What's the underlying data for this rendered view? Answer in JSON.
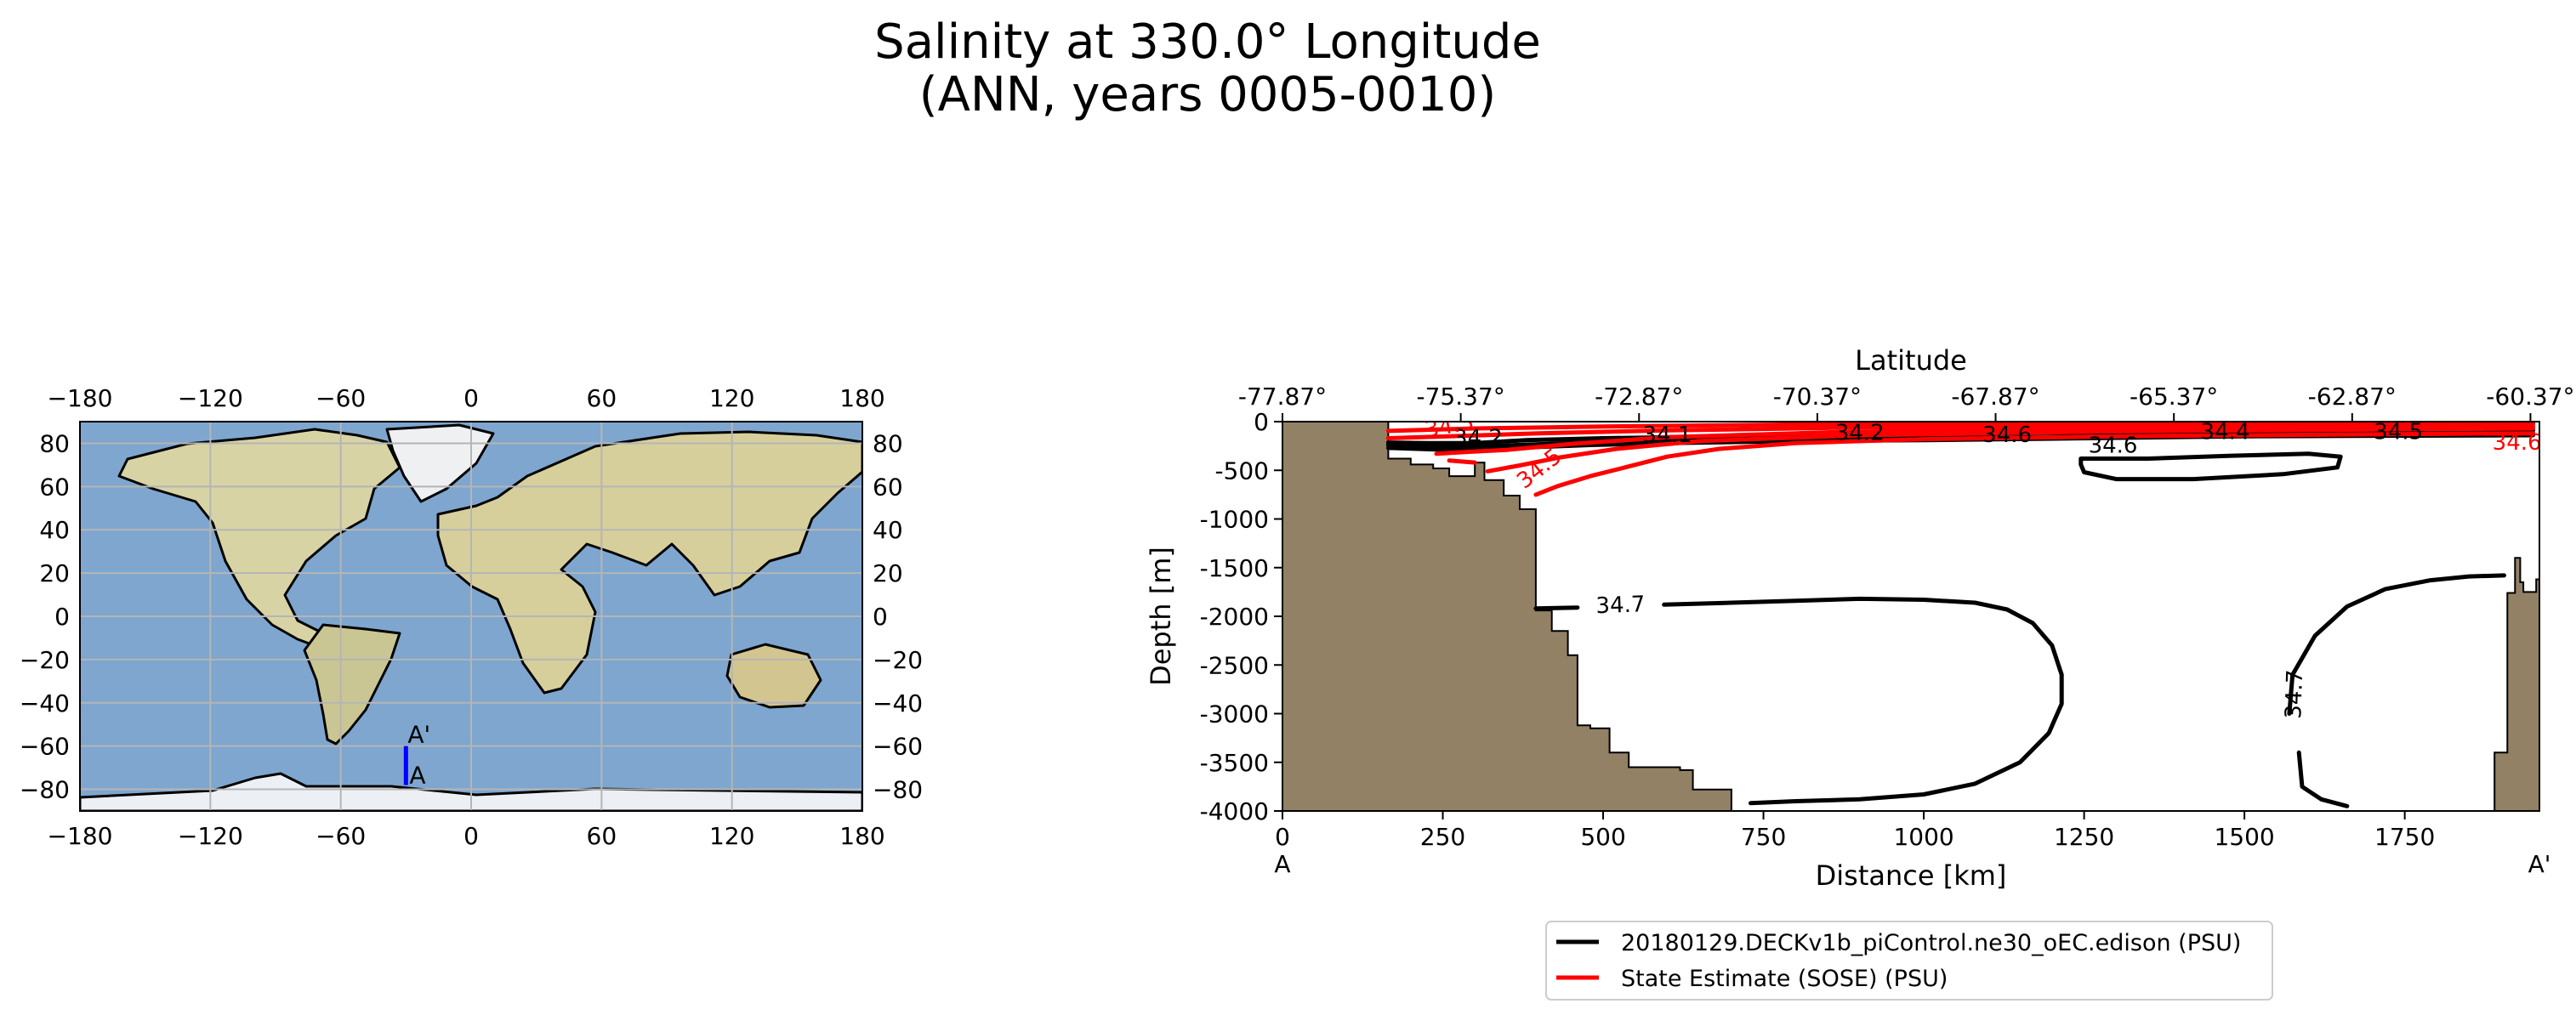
{
  "title": {
    "line1": "Salinity at 330.0° Longitude",
    "line2": "(ANN, years 0005-0010)"
  },
  "map": {
    "x_ticks": [
      "−180",
      "−120",
      "−60",
      "0",
      "60",
      "120",
      "180"
    ],
    "y_ticks": [
      "80",
      "60",
      "40",
      "20",
      "0",
      "−20",
      "−40",
      "−60",
      "−80"
    ],
    "transect": {
      "lon": -30,
      "lat_start": -78,
      "lat_end": -60,
      "start_label": "A",
      "end_label": "A'",
      "color": "#0000ff"
    },
    "ocean_color": "#7ea6cf",
    "land_color": "#d8d3a4"
  },
  "chart_data": {
    "type": "contour",
    "title": "",
    "top_axis_label": "Latitude",
    "lat_ticks": [
      "-77.87°",
      "-75.37°",
      "-72.87°",
      "-70.37°",
      "-67.87°",
      "-65.37°",
      "-62.87°",
      "-60.37°"
    ],
    "lat_tick_distances": [
      0,
      278,
      556,
      834,
      1112,
      1390,
      1668,
      1946
    ],
    "xlabel": "Distance [km]",
    "ylabel": "Depth [m]",
    "xlim": [
      0,
      1960
    ],
    "ylim": [
      -4000,
      0
    ],
    "x_ticks": [
      "0",
      "250",
      "500",
      "750",
      "1000",
      "1250",
      "1500",
      "1750"
    ],
    "x_tick_values": [
      0,
      250,
      500,
      750,
      1000,
      1250,
      1500,
      1750
    ],
    "y_ticks": [
      "0",
      "-500",
      "-1000",
      "-1500",
      "-2000",
      "-2500",
      "-3000",
      "-3500",
      "-4000"
    ],
    "y_tick_values": [
      0,
      -500,
      -1000,
      -1500,
      -2000,
      -2500,
      -3000,
      -3500,
      -4000
    ],
    "start_label": "A",
    "end_label": "A'",
    "bathymetry_color": "#928165",
    "bathymetry_left": [
      [
        0,
        0
      ],
      [
        165,
        0
      ],
      [
        165,
        -380
      ],
      [
        200,
        -380
      ],
      [
        200,
        -440
      ],
      [
        235,
        -440
      ],
      [
        235,
        -480
      ],
      [
        260,
        -480
      ],
      [
        260,
        -560
      ],
      [
        300,
        -560
      ],
      [
        300,
        -420
      ],
      [
        315,
        -420
      ],
      [
        315,
        -600
      ],
      [
        345,
        -600
      ],
      [
        345,
        -760
      ],
      [
        370,
        -760
      ],
      [
        370,
        -900
      ],
      [
        395,
        -900
      ],
      [
        395,
        -1940
      ],
      [
        420,
        -1940
      ],
      [
        420,
        -2150
      ],
      [
        445,
        -2150
      ],
      [
        445,
        -2400
      ],
      [
        460,
        -2400
      ],
      [
        460,
        -3120
      ],
      [
        480,
        -3120
      ],
      [
        480,
        -3150
      ],
      [
        510,
        -3150
      ],
      [
        510,
        -3400
      ],
      [
        540,
        -3400
      ],
      [
        540,
        -3550
      ],
      [
        620,
        -3550
      ],
      [
        620,
        -3580
      ],
      [
        640,
        -3580
      ],
      [
        640,
        -3780
      ],
      [
        700,
        -3780
      ],
      [
        700,
        -4000
      ],
      [
        0,
        -4000
      ]
    ],
    "bathymetry_right": [
      [
        1960,
        0
      ],
      [
        1960,
        -1620
      ],
      [
        1955,
        -1620
      ],
      [
        1955,
        -1750
      ],
      [
        1935,
        -1750
      ],
      [
        1935,
        -1650
      ],
      [
        1930,
        -1650
      ],
      [
        1930,
        -1400
      ],
      [
        1922,
        -1400
      ],
      [
        1922,
        -1760
      ],
      [
        1910,
        -1760
      ],
      [
        1910,
        -3400
      ],
      [
        1890,
        -3400
      ],
      [
        1890,
        -4000
      ],
      [
        1960,
        -4000
      ]
    ],
    "series": [
      {
        "name": "20180129.DECKv1b_piControl.ne30_oEC.edison (PSU)",
        "color": "#000000",
        "contours": [
          {
            "level": "34.7",
            "closed": false,
            "points": [
              [
                395,
                -1920
              ],
              [
                460,
                -1910
              ]
            ]
          },
          {
            "level": "34.7",
            "closed": false,
            "points": [
              [
                595,
                -1880
              ],
              [
                700,
                -1860
              ],
              [
                800,
                -1840
              ],
              [
                900,
                -1820
              ],
              [
                1000,
                -1830
              ],
              [
                1080,
                -1860
              ],
              [
                1130,
                -1930
              ],
              [
                1170,
                -2070
              ],
              [
                1200,
                -2300
              ],
              [
                1215,
                -2600
              ],
              [
                1215,
                -2900
              ],
              [
                1195,
                -3200
              ],
              [
                1150,
                -3500
              ],
              [
                1080,
                -3720
              ],
              [
                1000,
                -3830
              ],
              [
                900,
                -3880
              ],
              [
                800,
                -3900
              ],
              [
                730,
                -3920
              ]
            ]
          },
          {
            "level": "34.7",
            "closed": false,
            "points": [
              [
                1570,
                -3000
              ],
              [
                1575,
                -2600
              ],
              [
                1610,
                -2200
              ],
              [
                1660,
                -1900
              ],
              [
                1720,
                -1720
              ],
              [
                1790,
                -1630
              ],
              [
                1850,
                -1590
              ],
              [
                1905,
                -1580
              ]
            ]
          },
          {
            "level": "34.7",
            "closed": false,
            "points": [
              [
                1660,
                -3950
              ],
              [
                1620,
                -3880
              ],
              [
                1590,
                -3750
              ],
              [
                1585,
                -3400
              ]
            ]
          },
          {
            "level": "34.6",
            "closed": true,
            "points": [
              [
                1245,
                -380
              ],
              [
                1350,
                -380
              ],
              [
                1480,
                -350
              ],
              [
                1600,
                -330
              ],
              [
                1650,
                -360
              ],
              [
                1645,
                -470
              ],
              [
                1560,
                -540
              ],
              [
                1420,
                -590
              ],
              [
                1300,
                -590
              ],
              [
                1250,
                -520
              ],
              [
                1245,
                -440
              ],
              [
                1245,
                -380
              ]
            ]
          },
          {
            "level": "34.6",
            "closed": false,
            "points": [
              [
                165,
                -215
              ],
              [
                230,
                -220
              ],
              [
                300,
                -220
              ],
              [
                380,
                -190
              ],
              [
                500,
                -170
              ],
              [
                700,
                -150
              ],
              [
                900,
                -135
              ],
              [
                1100,
                -120
              ],
              [
                1300,
                -110
              ],
              [
                1500,
                -100
              ],
              [
                1700,
                -95
              ],
              [
                1950,
                -90
              ]
            ]
          },
          {
            "level": "34.2",
            "closed": false,
            "points": [
              [
                165,
                -240
              ],
              [
                250,
                -250
              ],
              [
                330,
                -250
              ],
              [
                450,
                -220
              ],
              [
                600,
                -200
              ],
              [
                800,
                -180
              ],
              [
                1000,
                -170
              ],
              [
                1200,
                -160
              ],
              [
                1500,
                -130
              ],
              [
                1950,
                -120
              ]
            ]
          },
          {
            "level": "34.1",
            "closed": false,
            "points": [
              [
                165,
                -270
              ],
              [
                260,
                -290
              ],
              [
                360,
                -270
              ],
              [
                480,
                -240
              ],
              [
                600,
                -220
              ],
              [
                800,
                -200
              ],
              [
                1000,
                -190
              ],
              [
                1200,
                -175
              ],
              [
                1500,
                -150
              ],
              [
                1950,
                -140
              ]
            ]
          }
        ]
      },
      {
        "name": "State Estimate (SOSE) (PSU)",
        "color": "#ff0000",
        "contours": [
          {
            "level": "34.5",
            "closed": false,
            "points": [
              [
                395,
                -750
              ],
              [
                430,
                -660
              ],
              [
                480,
                -560
              ],
              [
                540,
                -460
              ],
              [
                600,
                -360
              ],
              [
                680,
                -280
              ],
              [
                800,
                -220
              ],
              [
                1000,
                -180
              ],
              [
                1300,
                -150
              ],
              [
                1700,
                -130
              ],
              [
                1950,
                -120
              ]
            ]
          },
          {
            "level": "34.4",
            "closed": false,
            "points": [
              [
                320,
                -510
              ],
              [
                370,
                -450
              ],
              [
                430,
                -370
              ],
              [
                520,
                -280
              ],
              [
                650,
                -200
              ],
              [
                900,
                -140
              ],
              [
                1300,
                -100
              ],
              [
                1700,
                -80
              ],
              [
                1950,
                -70
              ]
            ]
          },
          {
            "level": "34.3",
            "closed": false,
            "points": [
              [
                240,
                -330
              ],
              [
                290,
                -310
              ],
              [
                350,
                -290
              ],
              [
                450,
                -230
              ],
              [
                600,
                -160
              ],
              [
                850,
                -110
              ],
              [
                1200,
                -70
              ],
              [
                1600,
                -55
              ],
              [
                1950,
                -50
              ]
            ]
          },
          {
            "level": "34.2",
            "closed": false,
            "points": [
              [
                165,
                -170
              ],
              [
                260,
                -150
              ],
              [
                400,
                -120
              ],
              [
                600,
                -90
              ],
              [
                900,
                -60
              ],
              [
                1300,
                -40
              ],
              [
                1700,
                -30
              ],
              [
                1950,
                -25
              ]
            ]
          },
          {
            "level": "34.1",
            "closed": false,
            "points": [
              [
                165,
                -95
              ],
              [
                300,
                -70
              ],
              [
                500,
                -50
              ],
              [
                800,
                -30
              ],
              [
                1200,
                -18
              ],
              [
                1950,
                -10
              ]
            ]
          },
          {
            "level": "34.0",
            "closed": false,
            "points": [
              [
                260,
                -400
              ],
              [
                300,
                -420
              ]
            ]
          }
        ]
      }
    ],
    "contour_labels": [
      {
        "text": "34.7",
        "x": 527,
        "y": -1880,
        "color": "#000000",
        "rotate": -2
      },
      {
        "text": "34.7",
        "x": 1577,
        "y": -2800,
        "color": "#000000",
        "rotate": -88
      },
      {
        "text": "34.6",
        "x": 1295,
        "y": -240,
        "color": "#000000",
        "rotate": 0
      },
      {
        "text": "34.6",
        "x": 1130,
        "y": -130,
        "color": "#000000",
        "rotate": 0
      },
      {
        "text": "34.2",
        "x": 900,
        "y": -110,
        "color": "#000000",
        "rotate": 0
      },
      {
        "text": "34.1",
        "x": 600,
        "y": -130,
        "color": "#000000",
        "rotate": 0
      },
      {
        "text": "34.4",
        "x": 1470,
        "y": -100,
        "color": "#000000",
        "rotate": 0
      },
      {
        "text": "34.5",
        "x": 1740,
        "y": -100,
        "color": "#000000",
        "rotate": 0
      },
      {
        "text": "34.2",
        "x": 305,
        "y": -160,
        "color": "#000000",
        "rotate": 0
      },
      {
        "text": "34.5",
        "x": 400,
        "y": -480,
        "color": "#ff0000",
        "rotate": -38
      },
      {
        "text": "34.3",
        "x": 260,
        "y": -40,
        "color": "#ff0000",
        "rotate": -10
      },
      {
        "text": "34.6",
        "x": 1925,
        "y": -210,
        "color": "#ff0000",
        "rotate": 0
      }
    ]
  },
  "legend": [
    {
      "label": "20180129.DECKv1b_piControl.ne30_oEC.edison (PSU)",
      "color": "#000000"
    },
    {
      "label": "State Estimate (SOSE) (PSU)",
      "color": "#ff0000"
    }
  ]
}
